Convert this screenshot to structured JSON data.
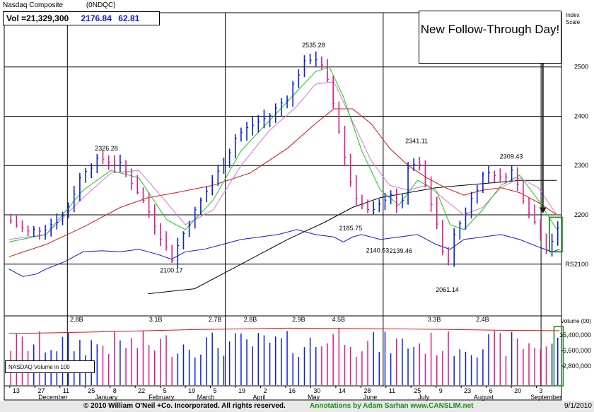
{
  "header": {
    "index_name": "Nasdaq Composite",
    "symbol": "(0NDQC)",
    "volume_label": "Vol =21,329,300",
    "price": "2176.84",
    "change": "62.81"
  },
  "annotation": {
    "text": "New Follow-Through Day!"
  },
  "footer": {
    "copyright": "© 2010 William O'Neil +Co. Incorporated. All rights reserved.",
    "annotations": "Annotations by Adam Sarhan www.CANSLIM.net",
    "date": "9/1/2010"
  },
  "volume_panel": {
    "legend": "NASDAQ Volume in 100",
    "axis_title": "Volume (00)",
    "ticks": [
      {
        "value": 15400000,
        "label": "15,400,000"
      },
      {
        "value": 6600000,
        "label": "6,600,000"
      },
      {
        "value": 2800000,
        "label": "2,800,000"
      }
    ]
  },
  "colors": {
    "up_bar": "#0a1ee6",
    "down_bar": "#e0198c",
    "ma_green": "#10d010",
    "ma_pink": "#e070e0",
    "ma_red": "#e01010",
    "ma_black": "#000000",
    "rs_line": "#1414e6",
    "callout_arrow": "#202020",
    "highlight_box": "#209020"
  },
  "chart_data": {
    "type": "ohlc",
    "price_axis": {
      "title": "Index Scale",
      "ticks": [
        2100,
        2200,
        2300,
        2400,
        2500
      ],
      "range": [
        1995,
        2610
      ]
    },
    "x_axis": {
      "week_labels": [
        "13",
        "27",
        "11",
        "25",
        "8",
        "22",
        "5",
        "19",
        "5",
        "19",
        "2",
        "16",
        "30",
        "14",
        "28",
        "11",
        "25",
        "9",
        "23",
        "6",
        "20",
        "3"
      ],
      "month_labels": [
        "December",
        "January",
        "February",
        "March",
        "April",
        "May",
        "June",
        "July",
        "August",
        "September"
      ]
    },
    "price_labels": [
      {
        "text": "2326.28",
        "week": 10.5,
        "value": 2326.28
      },
      {
        "text": "2100.17",
        "week": 17.5,
        "value": 2100.17
      },
      {
        "text": "2535.28",
        "week": 32.8,
        "value": 2535.28
      },
      {
        "text": "2185.75",
        "week": 36.8,
        "value": 2185.75
      },
      {
        "text": "2140.53",
        "week": 39.7,
        "value": 2140.53
      },
      {
        "text": "2139.46",
        "week": 42.2,
        "value": 2139.46
      },
      {
        "text": "2341.11",
        "week": 43.9,
        "value": 2341.11
      },
      {
        "text": "2061.14",
        "week": 47.2,
        "value": 2061.14
      },
      {
        "text": "2309.43",
        "week": 54.1,
        "value": 2309.43
      }
    ],
    "rs_label": "RS",
    "volume_labels": [
      {
        "text": "2.8B",
        "week": 7.3
      },
      {
        "text": "3.1B",
        "week": 15.8
      },
      {
        "text": "2.7B",
        "week": 22.2
      },
      {
        "text": "2.8B",
        "week": 26.0
      },
      {
        "text": "2.9B",
        "week": 31.2
      },
      {
        "text": "4.5B",
        "week": 35.5
      },
      {
        "text": "3.3B",
        "week": 45.8
      },
      {
        "text": "2.4B",
        "week": 51.0
      }
    ],
    "price_path": [
      [
        0,
        2190
      ],
      [
        2,
        2165
      ],
      [
        4,
        2175
      ],
      [
        6,
        2200
      ],
      [
        8,
        2290
      ],
      [
        10,
        2315
      ],
      [
        12,
        2300
      ],
      [
        13.5,
        2260
      ],
      [
        15,
        2210
      ],
      [
        16.5,
        2150
      ],
      [
        17.5,
        2110
      ],
      [
        19,
        2170
      ],
      [
        21,
        2240
      ],
      [
        23,
        2300
      ],
      [
        24.5,
        2360
      ],
      [
        26,
        2380
      ],
      [
        28,
        2400
      ],
      [
        30,
        2440
      ],
      [
        31.5,
        2500
      ],
      [
        32.8,
        2525
      ],
      [
        34,
        2490
      ],
      [
        35,
        2420
      ],
      [
        36,
        2330
      ],
      [
        37,
        2250
      ],
      [
        38,
        2220
      ],
      [
        39,
        2200
      ],
      [
        40,
        2220
      ],
      [
        41,
        2250
      ],
      [
        42,
        2200
      ],
      [
        43,
        2290
      ],
      [
        44,
        2310
      ],
      [
        45,
        2250
      ],
      [
        46,
        2190
      ],
      [
        47,
        2090
      ],
      [
        48,
        2160
      ],
      [
        49,
        2200
      ],
      [
        50,
        2240
      ],
      [
        51,
        2280
      ],
      [
        52,
        2290
      ],
      [
        53,
        2270
      ],
      [
        54,
        2295
      ],
      [
        55,
        2250
      ],
      [
        56,
        2210
      ],
      [
        57,
        2170
      ],
      [
        58,
        2125
      ],
      [
        58.7,
        2160
      ],
      [
        59.3,
        2172
      ]
    ],
    "ma_green": [
      [
        0,
        2145
      ],
      [
        4,
        2160
      ],
      [
        8,
        2250
      ],
      [
        11,
        2290
      ],
      [
        14,
        2275
      ],
      [
        17,
        2190
      ],
      [
        19,
        2170
      ],
      [
        22,
        2230
      ],
      [
        25,
        2330
      ],
      [
        28,
        2390
      ],
      [
        31,
        2450
      ],
      [
        33,
        2490
      ],
      [
        34.5,
        2500
      ],
      [
        36,
        2440
      ],
      [
        38,
        2330
      ],
      [
        40,
        2250
      ],
      [
        42,
        2220
      ],
      [
        44,
        2270
      ],
      [
        46,
        2250
      ],
      [
        47.5,
        2180
      ],
      [
        49,
        2170
      ],
      [
        51,
        2210
      ],
      [
        53,
        2260
      ],
      [
        55,
        2280
      ],
      [
        57,
        2230
      ],
      [
        59,
        2170
      ]
    ],
    "ma_pink": [
      [
        0,
        2150
      ],
      [
        4,
        2160
      ],
      [
        8,
        2235
      ],
      [
        11,
        2285
      ],
      [
        14,
        2290
      ],
      [
        17,
        2225
      ],
      [
        19,
        2180
      ],
      [
        22,
        2210
      ],
      [
        25,
        2300
      ],
      [
        28,
        2370
      ],
      [
        31,
        2420
      ],
      [
        33,
        2465
      ],
      [
        35,
        2470
      ],
      [
        37,
        2390
      ],
      [
        39,
        2310
      ],
      [
        41,
        2260
      ],
      [
        43,
        2250
      ],
      [
        45,
        2260
      ],
      [
        47,
        2230
      ],
      [
        49,
        2200
      ],
      [
        51,
        2215
      ],
      [
        53,
        2255
      ],
      [
        55,
        2275
      ],
      [
        57,
        2255
      ],
      [
        59,
        2200
      ]
    ],
    "ma_red": [
      [
        0,
        2115
      ],
      [
        4,
        2140
      ],
      [
        8,
        2175
      ],
      [
        12,
        2215
      ],
      [
        15,
        2235
      ],
      [
        18,
        2245
      ],
      [
        22,
        2260
      ],
      [
        26,
        2285
      ],
      [
        30,
        2335
      ],
      [
        33,
        2385
      ],
      [
        35,
        2415
      ],
      [
        37,
        2415
      ],
      [
        39,
        2385
      ],
      [
        41,
        2335
      ],
      [
        43,
        2300
      ],
      [
        45,
        2275
      ],
      [
        47,
        2255
      ],
      [
        49,
        2240
      ],
      [
        51,
        2250
      ],
      [
        53,
        2255
      ],
      [
        55,
        2245
      ],
      [
        57,
        2225
      ],
      [
        59,
        2200
      ]
    ],
    "ma_black": [
      [
        15,
        2040
      ],
      [
        20,
        2050
      ],
      [
        25,
        2100
      ],
      [
        30,
        2150
      ],
      [
        34,
        2185
      ],
      [
        37,
        2215
      ],
      [
        40,
        2235
      ],
      [
        43,
        2245
      ],
      [
        46,
        2255
      ],
      [
        49,
        2260
      ],
      [
        52,
        2265
      ],
      [
        55,
        2270
      ],
      [
        59,
        2270
      ]
    ],
    "rs_path": [
      [
        0,
        2090
      ],
      [
        1.5,
        2075
      ],
      [
        3,
        2080
      ],
      [
        4,
        2090
      ],
      [
        6,
        2105
      ],
      [
        8,
        2125
      ],
      [
        10,
        2127
      ],
      [
        12,
        2125
      ],
      [
        14,
        2130
      ],
      [
        16,
        2120
      ],
      [
        17.5,
        2110
      ],
      [
        19,
        2125
      ],
      [
        21,
        2130
      ],
      [
        23,
        2140
      ],
      [
        25,
        2150
      ],
      [
        27,
        2155
      ],
      [
        29,
        2160
      ],
      [
        31,
        2170
      ],
      [
        33,
        2160
      ],
      [
        35,
        2155
      ],
      [
        36,
        2145
      ],
      [
        37,
        2155
      ],
      [
        38,
        2160
      ],
      [
        40,
        2150
      ],
      [
        42,
        2155
      ],
      [
        44,
        2160
      ],
      [
        46,
        2140
      ],
      [
        47.5,
        2130
      ],
      [
        49,
        2150
      ],
      [
        51,
        2155
      ],
      [
        53,
        2160
      ],
      [
        55,
        2150
      ],
      [
        57,
        2135
      ],
      [
        58.5,
        2125
      ],
      [
        59.3,
        2130
      ]
    ],
    "volume_index_path": [
      [
        0,
        14.5
      ],
      [
        10,
        15.0
      ],
      [
        20,
        15.6
      ],
      [
        30,
        16.0
      ],
      [
        36,
        15.9
      ],
      [
        42,
        15.8
      ],
      [
        48,
        15.6
      ],
      [
        54,
        15.4
      ],
      [
        59.3,
        15.3
      ]
    ]
  }
}
